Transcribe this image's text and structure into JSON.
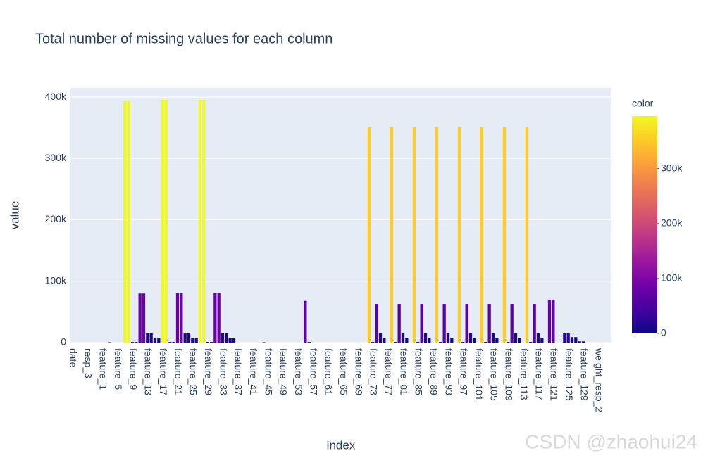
{
  "chart_data": {
    "type": "bar",
    "title": "Total number of missing values for each column",
    "x_label": "index",
    "y_label": "value",
    "colorbar_title": "color",
    "watermark": "CSDN @zhaohui24",
    "categories": [
      "date",
      null,
      null,
      null,
      "resp_3",
      null,
      null,
      null,
      "feature_1",
      null,
      null,
      null,
      "feature_5",
      null,
      null,
      null,
      "feature_9",
      null,
      null,
      null,
      "feature_13",
      null,
      null,
      null,
      "feature_17",
      null,
      null,
      null,
      "feature_21",
      null,
      null,
      null,
      "feature_25",
      null,
      null,
      null,
      "feature_29",
      null,
      null,
      null,
      "feature_33",
      null,
      null,
      null,
      "feature_37",
      null,
      null,
      null,
      "feature_41",
      null,
      null,
      null,
      "feature_45",
      null,
      null,
      null,
      "feature_49",
      null,
      null,
      null,
      "feature_53",
      null,
      null,
      null,
      "feature_57",
      null,
      null,
      null,
      "feature_61",
      null,
      null,
      null,
      "feature_65",
      null,
      null,
      null,
      "feature_69",
      null,
      null,
      null,
      "feature_73",
      null,
      null,
      null,
      "feature_77",
      null,
      null,
      null,
      "feature_81",
      null,
      null,
      null,
      "feature_85",
      null,
      null,
      null,
      "feature_89",
      null,
      null,
      null,
      "feature_93",
      null,
      null,
      null,
      "feature_97",
      null,
      null,
      null,
      "feature_101",
      null,
      null,
      null,
      "feature_105",
      null,
      null,
      null,
      "feature_109",
      null,
      null,
      null,
      "feature_113",
      null,
      null,
      null,
      "feature_117",
      null,
      null,
      null,
      "feature_121",
      null,
      null,
      null,
      "feature_125",
      null,
      null,
      null,
      "feature_129",
      null,
      null,
      null,
      "weight_resp_2",
      null,
      null,
      null
    ],
    "values": [
      0,
      0,
      0,
      0,
      0,
      0,
      0,
      0,
      0,
      0,
      500,
      0,
      0,
      0,
      393135,
      393135,
      1000,
      1000,
      80000,
      80000,
      15000,
      15000,
      7000,
      7000,
      395535,
      395535,
      1000,
      1000,
      81000,
      81000,
      15000,
      15000,
      7000,
      7000,
      395535,
      395535,
      1000,
      1000,
      81000,
      81000,
      15000,
      15000,
      7000,
      7000,
      0,
      0,
      0,
      0,
      0,
      0,
      0,
      500,
      0,
      0,
      0,
      0,
      0,
      0,
      0,
      0,
      0,
      0,
      68000,
      1000,
      0,
      0,
      0,
      0,
      0,
      0,
      0,
      0,
      0,
      0,
      0,
      0,
      0,
      0,
      0,
      351426,
      1000,
      63000,
      15000,
      7000,
      0,
      351426,
      1000,
      63000,
      15000,
      7000,
      0,
      351426,
      1000,
      63000,
      15000,
      7000,
      0,
      351426,
      1000,
      63000,
      15000,
      7000,
      0,
      351426,
      1000,
      63000,
      15000,
      7000,
      0,
      351426,
      1000,
      63000,
      15000,
      7000,
      0,
      351426,
      1000,
      63000,
      15000,
      7000,
      0,
      351426,
      1000,
      63000,
      15000,
      7000,
      0,
      70000,
      70000,
      0,
      0,
      16000,
      16000,
      9000,
      9000,
      2000,
      2000,
      0,
      0,
      0,
      0,
      0,
      0,
      0
    ],
    "ylim": [
      0,
      415000
    ],
    "yticks": [
      0,
      {
        "value": 100000,
        "label": "100k"
      },
      {
        "value": 200000,
        "label": "200k"
      },
      {
        "value": 300000,
        "label": "300k"
      },
      {
        "value": 400000,
        "label": "400k"
      }
    ],
    "grid": true,
    "colorscale": [
      "#0d0887",
      "#46039f",
      "#7201a8",
      "#9c179e",
      "#bd3786",
      "#d8576b",
      "#ed7953",
      "#fb9f3a",
      "#fdca26",
      "#f0f921"
    ],
    "clim": [
      0,
      395535
    ],
    "cticks": [
      0,
      {
        "value": 100000,
        "label": "100k"
      },
      {
        "value": 200000,
        "label": "200k"
      },
      {
        "value": 300000,
        "label": "300k"
      }
    ]
  }
}
